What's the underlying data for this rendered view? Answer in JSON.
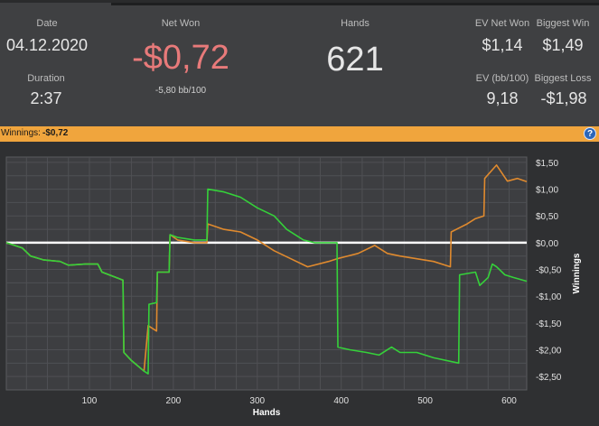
{
  "stats": {
    "date_label": "Date",
    "date_value": "04.12.2020",
    "duration_label": "Duration",
    "duration_value": "2:37",
    "net_won_label": "Net Won",
    "net_won_value": "-$0,72",
    "net_won_sub": "-5,80 bb/100",
    "hands_label": "Hands",
    "hands_value": "621",
    "ev_net_won_label": "EV Net Won",
    "ev_net_won_value": "$1,14",
    "biggest_win_label": "Biggest Win",
    "biggest_win_value": "$1,49",
    "ev_bb100_label": "EV (bb/100)",
    "ev_bb100_value": "9,18",
    "biggest_loss_label": "Biggest Loss",
    "biggest_loss_value": "-$1,98"
  },
  "banner": {
    "label": "Winnings:",
    "value": "-$0,72",
    "help_icon": "?"
  },
  "colors": {
    "net_won": "#e87a7a",
    "banner": "#f0a53d",
    "line_winnings": "#35d13a",
    "line_ev": "#e08a2e",
    "zero_line": "#ffffff"
  },
  "chart_data": {
    "type": "line",
    "xlabel": "Hands",
    "ylabel": "Winnings",
    "xlim": [
      1,
      621
    ],
    "ylim": [
      -2.75,
      1.6
    ],
    "x_ticks": [
      100,
      200,
      300,
      400,
      500,
      600
    ],
    "x_tick_labels": [
      "100",
      "200",
      "300",
      "400",
      "500",
      "600"
    ],
    "y_ticks": [
      1.5,
      1.0,
      0.5,
      0.0,
      -0.5,
      -1.0,
      -1.5,
      -2.0,
      -2.5
    ],
    "y_tick_labels": [
      "$1,50",
      "$1,00",
      "$0,50",
      "$0,00",
      "-$0,50",
      "-$1,00",
      "-$1,50",
      "-$2,00",
      "-$2,50"
    ],
    "grid": true,
    "series": [
      {
        "key": "winnings",
        "points": [
          [
            1,
            0
          ],
          [
            20,
            -0.1
          ],
          [
            30,
            -0.25
          ],
          [
            45,
            -0.32
          ],
          [
            65,
            -0.35
          ],
          [
            75,
            -0.42
          ],
          [
            95,
            -0.4
          ],
          [
            110,
            -0.4
          ],
          [
            115,
            -0.55
          ],
          [
            140,
            -0.7
          ],
          [
            141,
            -2.05
          ],
          [
            150,
            -2.2
          ],
          [
            165,
            -2.4
          ],
          [
            170,
            -2.45
          ],
          [
            171,
            -1.15
          ],
          [
            180,
            -1.12
          ],
          [
            181,
            -0.55
          ],
          [
            195,
            -0.55
          ],
          [
            196,
            0.15
          ],
          [
            205,
            0.1
          ],
          [
            225,
            0.05
          ],
          [
            240,
            0.05
          ],
          [
            241,
            1.0
          ],
          [
            260,
            0.95
          ],
          [
            280,
            0.85
          ],
          [
            300,
            0.65
          ],
          [
            320,
            0.5
          ],
          [
            335,
            0.25
          ],
          [
            355,
            0.05
          ],
          [
            368,
            0.0
          ],
          [
            395,
            0.0
          ],
          [
            396,
            -1.95
          ],
          [
            410,
            -2.0
          ],
          [
            430,
            -2.05
          ],
          [
            445,
            -2.1
          ],
          [
            460,
            -1.95
          ],
          [
            470,
            -2.05
          ],
          [
            490,
            -2.05
          ],
          [
            510,
            -2.15
          ],
          [
            540,
            -2.25
          ],
          [
            541,
            -0.6
          ],
          [
            560,
            -0.55
          ],
          [
            565,
            -0.8
          ],
          [
            575,
            -0.65
          ],
          [
            580,
            -0.4
          ],
          [
            585,
            -0.45
          ],
          [
            595,
            -0.6
          ],
          [
            605,
            -0.65
          ],
          [
            621,
            -0.72
          ]
        ]
      },
      {
        "key": "ev",
        "points": [
          [
            1,
            0
          ],
          [
            20,
            -0.1
          ],
          [
            30,
            -0.25
          ],
          [
            45,
            -0.32
          ],
          [
            65,
            -0.35
          ],
          [
            75,
            -0.42
          ],
          [
            95,
            -0.4
          ],
          [
            110,
            -0.4
          ],
          [
            115,
            -0.55
          ],
          [
            140,
            -0.7
          ],
          [
            141,
            -2.05
          ],
          [
            150,
            -2.2
          ],
          [
            165,
            -2.4
          ],
          [
            170,
            -1.55
          ],
          [
            180,
            -1.65
          ],
          [
            181,
            -0.55
          ],
          [
            195,
            -0.55
          ],
          [
            196,
            0.15
          ],
          [
            205,
            0.05
          ],
          [
            225,
            0.0
          ],
          [
            240,
            0.0
          ],
          [
            241,
            0.35
          ],
          [
            260,
            0.25
          ],
          [
            280,
            0.2
          ],
          [
            300,
            0.05
          ],
          [
            320,
            -0.15
          ],
          [
            340,
            -0.3
          ],
          [
            360,
            -0.45
          ],
          [
            385,
            -0.35
          ],
          [
            395,
            -0.3
          ],
          [
            420,
            -0.2
          ],
          [
            440,
            -0.05
          ],
          [
            455,
            -0.2
          ],
          [
            470,
            -0.25
          ],
          [
            490,
            -0.3
          ],
          [
            510,
            -0.35
          ],
          [
            530,
            -0.45
          ],
          [
            531,
            0.2
          ],
          [
            550,
            0.35
          ],
          [
            560,
            0.45
          ],
          [
            570,
            0.5
          ],
          [
            571,
            1.2
          ],
          [
            585,
            1.45
          ],
          [
            598,
            1.15
          ],
          [
            610,
            1.2
          ],
          [
            621,
            1.14
          ]
        ]
      }
    ]
  }
}
